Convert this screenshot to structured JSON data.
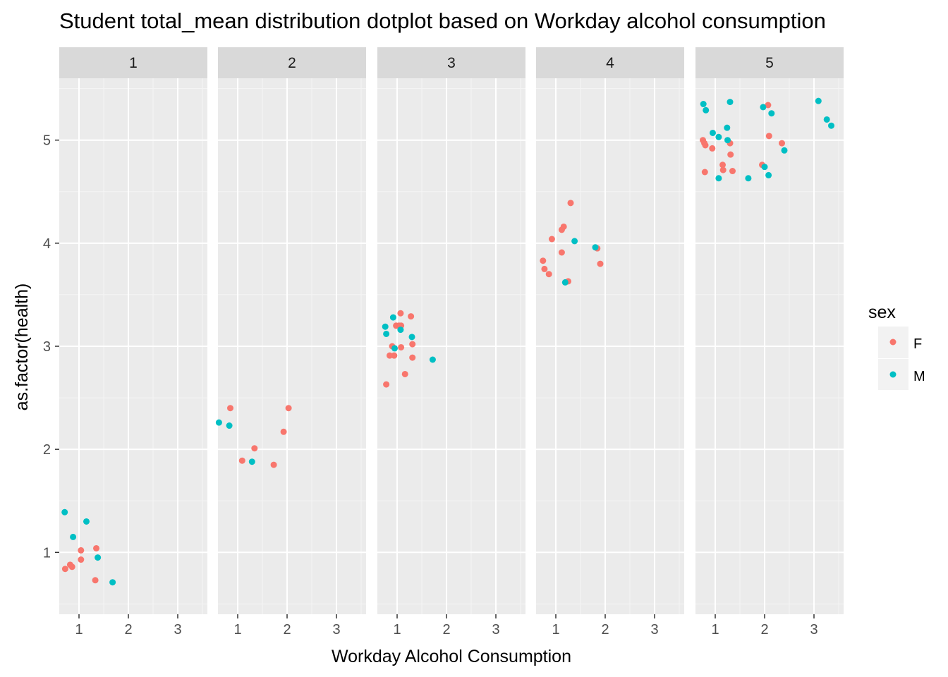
{
  "chart_data": {
    "type": "scatter",
    "title": "Student total_mean distribution dotplot based on Workday alcohol consumption",
    "xlabel": "Workday Alcohol Consumption",
    "ylabel": "as.factor(health)",
    "facet_labels": [
      "1",
      "2",
      "3",
      "4",
      "5"
    ],
    "x_ticks": [
      1,
      2,
      3
    ],
    "y_ticks": [
      1,
      2,
      3,
      4,
      5
    ],
    "xlim": [
      0.6,
      3.6
    ],
    "ylim": [
      0.4,
      5.6
    ],
    "legend": {
      "title": "sex",
      "placement": "right",
      "entries": [
        {
          "label": "F",
          "color": "#F8766D"
        },
        {
          "label": "M",
          "color": "#00BFC4"
        }
      ]
    },
    "colors": {
      "F": "#F8766D",
      "M": "#00BFC4",
      "panel_bg": "#EBEBEB",
      "strip_bg": "#D9D9D9",
      "grid": "#FFFFFF"
    },
    "grid": true,
    "series": [
      {
        "name": "F",
        "facets": [
          [
            [
              0.72,
              0.84
            ],
            [
              0.82,
              0.88
            ],
            [
              0.86,
              0.86
            ],
            [
              1.04,
              1.02
            ],
            [
              1.04,
              0.93
            ],
            [
              1.35,
              1.04
            ],
            [
              1.33,
              0.73
            ]
          ],
          [
            [
              0.85,
              2.4
            ],
            [
              1.09,
              1.89
            ],
            [
              1.34,
              2.01
            ],
            [
              1.93,
              2.17
            ],
            [
              2.03,
              2.4
            ],
            [
              1.73,
              1.85
            ]
          ],
          [
            [
              0.78,
              2.63
            ],
            [
              0.85,
              2.91
            ],
            [
              0.9,
              3.0
            ],
            [
              0.94,
              2.91
            ],
            [
              0.98,
              3.2
            ],
            [
              1.04,
              3.2
            ],
            [
              1.07,
              3.32
            ],
            [
              1.08,
              3.2
            ],
            [
              1.08,
              2.99
            ],
            [
              1.16,
              2.73
            ],
            [
              1.28,
              3.29
            ],
            [
              1.31,
              3.02
            ],
            [
              1.31,
              2.89
            ]
          ],
          [
            [
              0.74,
              3.83
            ],
            [
              0.77,
              3.75
            ],
            [
              0.86,
              3.7
            ],
            [
              0.92,
              4.04
            ],
            [
              1.12,
              3.91
            ],
            [
              1.12,
              4.13
            ],
            [
              1.16,
              4.16
            ],
            [
              1.25,
              3.63
            ],
            [
              1.3,
              4.39
            ],
            [
              1.84,
              3.95
            ],
            [
              1.9,
              3.8
            ]
          ],
          [
            [
              0.75,
              5.0
            ],
            [
              0.78,
              4.97
            ],
            [
              0.8,
              4.95
            ],
            [
              0.79,
              4.69
            ],
            [
              0.94,
              4.92
            ],
            [
              1.15,
              4.76
            ],
            [
              1.16,
              4.71
            ],
            [
              1.3,
              4.97
            ],
            [
              1.31,
              4.86
            ],
            [
              1.35,
              4.7
            ],
            [
              1.95,
              4.76
            ],
            [
              2.07,
              5.34
            ],
            [
              2.09,
              5.04
            ],
            [
              2.35,
              4.97
            ]
          ]
        ]
      },
      {
        "name": "M",
        "facets": [
          [
            [
              0.71,
              1.39
            ],
            [
              0.88,
              1.15
            ],
            [
              1.15,
              1.3
            ],
            [
              1.38,
              0.95
            ],
            [
              1.68,
              0.71
            ]
          ],
          [
            [
              0.62,
              2.26
            ],
            [
              0.83,
              2.23
            ],
            [
              1.29,
              1.88
            ]
          ],
          [
            [
              0.76,
              3.19
            ],
            [
              0.78,
              3.12
            ],
            [
              0.92,
              3.28
            ],
            [
              0.95,
              2.98
            ],
            [
              1.07,
              3.16
            ],
            [
              1.3,
              3.09
            ],
            [
              1.72,
              2.87
            ]
          ],
          [
            [
              1.19,
              3.62
            ],
            [
              1.38,
              4.02
            ],
            [
              1.8,
              3.96
            ]
          ],
          [
            [
              0.76,
              5.35
            ],
            [
              0.81,
              5.29
            ],
            [
              0.95,
              5.07
            ],
            [
              1.07,
              5.03
            ],
            [
              1.07,
              4.63
            ],
            [
              1.24,
              5.12
            ],
            [
              1.25,
              5.0
            ],
            [
              1.3,
              5.37
            ],
            [
              1.67,
              4.63
            ],
            [
              1.97,
              5.32
            ],
            [
              2.0,
              4.74
            ],
            [
              2.08,
              4.66
            ],
            [
              2.14,
              5.26
            ],
            [
              2.4,
              4.9
            ],
            [
              3.09,
              5.38
            ],
            [
              3.26,
              5.2
            ],
            [
              3.35,
              5.14
            ]
          ]
        ]
      }
    ]
  }
}
